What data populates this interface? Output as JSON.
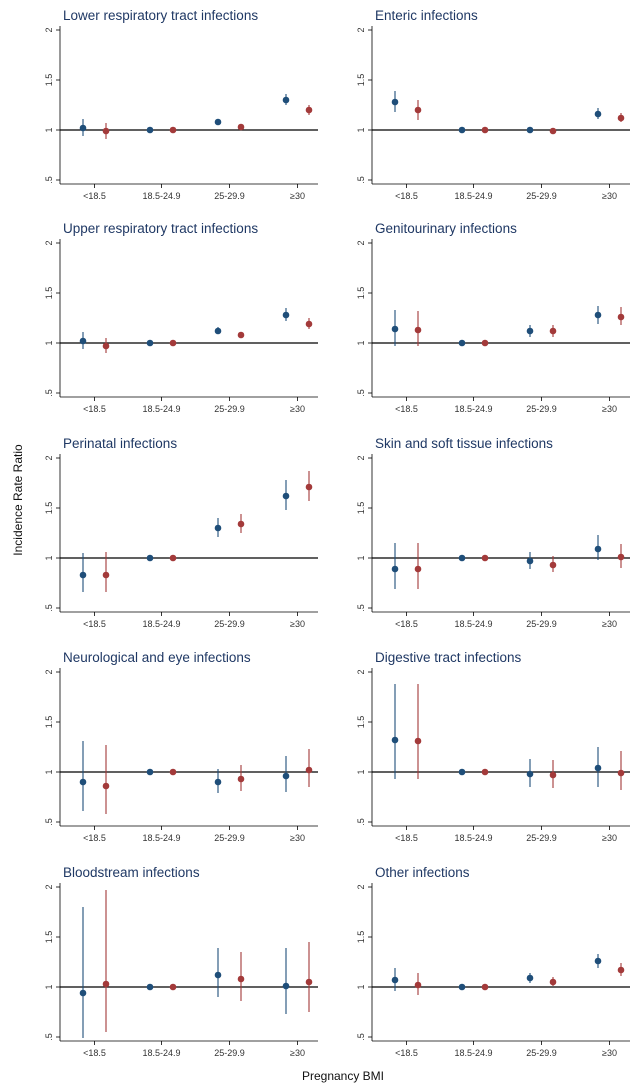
{
  "figure": {
    "ylabel": "Incidence Rate Ratio",
    "xlabel": "Pregnancy BMI"
  },
  "chart_data": {
    "type": "scatter",
    "subtype": "point-estimate with confidence interval (forest-style)",
    "categories": [
      "<18.5",
      "18.5-24.9",
      "25-29.9",
      "≥30"
    ],
    "yticks": [
      "2",
      "1.5",
      "1",
      ".5"
    ],
    "ylim": [
      0.5,
      2
    ],
    "reference_line": 1,
    "grid": false,
    "colors": {
      "series_a": "#1f4e79",
      "series_b": "#a33a3a",
      "axis": "#000000"
    },
    "panels": [
      {
        "title": "Lower respiratory tract infections",
        "series_a": [
          [
            1.02,
            0.94,
            1.11
          ],
          [
            1.0,
            1.0,
            1.0
          ],
          [
            1.08,
            1.05,
            1.11
          ],
          [
            1.3,
            1.25,
            1.36
          ]
        ],
        "series_b": [
          [
            0.99,
            0.91,
            1.07
          ],
          [
            1.0,
            1.0,
            1.0
          ],
          [
            1.03,
            1.0,
            1.06
          ],
          [
            1.2,
            1.15,
            1.25
          ]
        ]
      },
      {
        "title": "Enteric infections",
        "series_a": [
          [
            1.28,
            1.18,
            1.39
          ],
          [
            1.0,
            1.0,
            1.0
          ],
          [
            1.0,
            0.98,
            1.03
          ],
          [
            1.16,
            1.11,
            1.22
          ]
        ],
        "series_b": [
          [
            1.2,
            1.1,
            1.3
          ],
          [
            1.0,
            1.0,
            1.0
          ],
          [
            0.99,
            0.97,
            1.02
          ],
          [
            1.12,
            1.08,
            1.17
          ]
        ]
      },
      {
        "title": "Upper respiratory tract infections",
        "series_a": [
          [
            1.02,
            0.94,
            1.11
          ],
          [
            1.0,
            1.0,
            1.0
          ],
          [
            1.12,
            1.09,
            1.16
          ],
          [
            1.28,
            1.22,
            1.35
          ]
        ],
        "series_b": [
          [
            0.97,
            0.9,
            1.05
          ],
          [
            1.0,
            1.0,
            1.0
          ],
          [
            1.08,
            1.05,
            1.11
          ],
          [
            1.19,
            1.14,
            1.25
          ]
        ]
      },
      {
        "title": "Genitourinary infections",
        "series_a": [
          [
            1.14,
            0.97,
            1.33
          ],
          [
            1.0,
            1.0,
            1.0
          ],
          [
            1.12,
            1.06,
            1.18
          ],
          [
            1.28,
            1.19,
            1.37
          ]
        ],
        "series_b": [
          [
            1.13,
            0.97,
            1.32
          ],
          [
            1.0,
            1.0,
            1.0
          ],
          [
            1.12,
            1.06,
            1.18
          ],
          [
            1.26,
            1.18,
            1.36
          ]
        ]
      },
      {
        "title": "Perinatal infections",
        "series_a": [
          [
            0.83,
            0.66,
            1.05
          ],
          [
            1.0,
            1.0,
            1.0
          ],
          [
            1.3,
            1.21,
            1.4
          ],
          [
            1.62,
            1.48,
            1.78
          ]
        ],
        "series_b": [
          [
            0.83,
            0.66,
            1.06
          ],
          [
            1.0,
            1.0,
            1.0
          ],
          [
            1.34,
            1.25,
            1.44
          ],
          [
            1.71,
            1.57,
            1.87
          ]
        ]
      },
      {
        "title": "Skin and soft tissue infections",
        "series_a": [
          [
            0.89,
            0.69,
            1.15
          ],
          [
            1.0,
            1.0,
            1.0
          ],
          [
            0.97,
            0.89,
            1.06
          ],
          [
            1.09,
            0.98,
            1.23
          ]
        ],
        "series_b": [
          [
            0.89,
            0.69,
            1.15
          ],
          [
            1.0,
            1.0,
            1.0
          ],
          [
            0.93,
            0.86,
            1.02
          ],
          [
            1.01,
            0.9,
            1.14
          ]
        ]
      },
      {
        "title": "Neurological and eye infections",
        "series_a": [
          [
            0.9,
            0.61,
            1.31
          ],
          [
            1.0,
            1.0,
            1.0
          ],
          [
            0.9,
            0.79,
            1.03
          ],
          [
            0.96,
            0.8,
            1.16
          ]
        ],
        "series_b": [
          [
            0.86,
            0.58,
            1.27
          ],
          [
            1.0,
            1.0,
            1.0
          ],
          [
            0.93,
            0.81,
            1.07
          ],
          [
            1.02,
            0.85,
            1.23
          ]
        ]
      },
      {
        "title": "Digestive tract infections",
        "series_a": [
          [
            1.32,
            0.93,
            1.88
          ],
          [
            1.0,
            1.0,
            1.0
          ],
          [
            0.98,
            0.85,
            1.13
          ],
          [
            1.04,
            0.85,
            1.25
          ]
        ],
        "series_b": [
          [
            1.31,
            0.93,
            1.88
          ],
          [
            1.0,
            1.0,
            1.0
          ],
          [
            0.97,
            0.84,
            1.12
          ],
          [
            0.99,
            0.82,
            1.21
          ]
        ]
      },
      {
        "title": "Bloodstream infections",
        "series_a": [
          [
            0.94,
            0.49,
            1.8
          ],
          [
            1.0,
            1.0,
            1.0
          ],
          [
            1.12,
            0.9,
            1.39
          ],
          [
            1.01,
            0.73,
            1.39
          ]
        ],
        "series_b": [
          [
            1.03,
            0.55,
            1.97
          ],
          [
            1.0,
            1.0,
            1.0
          ],
          [
            1.08,
            0.86,
            1.35
          ],
          [
            1.05,
            0.75,
            1.45
          ]
        ]
      },
      {
        "title": "Other infections",
        "series_a": [
          [
            1.07,
            0.96,
            1.19
          ],
          [
            1.0,
            1.0,
            1.0
          ],
          [
            1.09,
            1.04,
            1.14
          ],
          [
            1.26,
            1.19,
            1.33
          ]
        ],
        "series_b": [
          [
            1.02,
            0.92,
            1.14
          ],
          [
            1.0,
            1.0,
            1.0
          ],
          [
            1.05,
            1.01,
            1.1
          ],
          [
            1.17,
            1.11,
            1.24
          ]
        ]
      }
    ]
  }
}
